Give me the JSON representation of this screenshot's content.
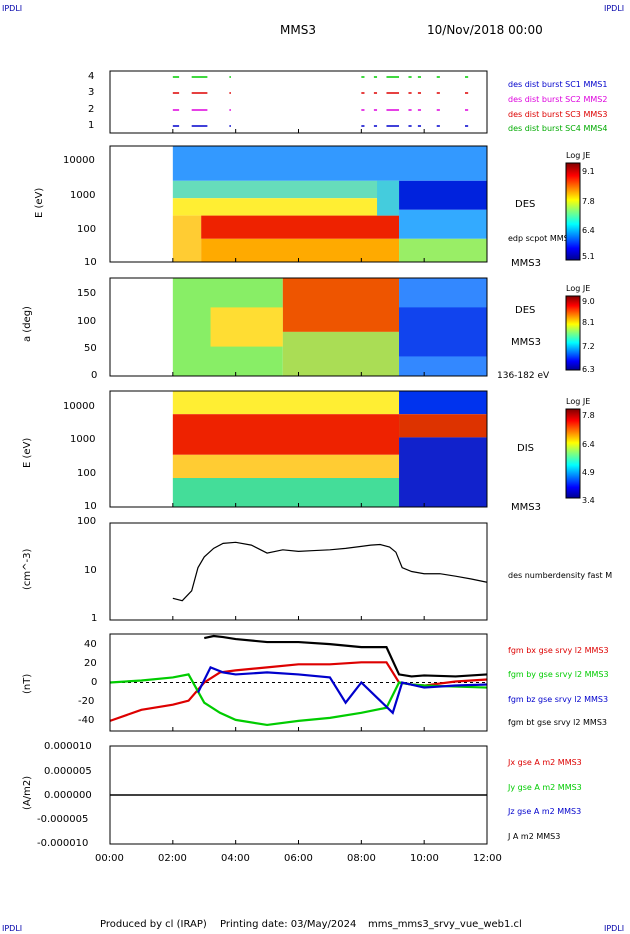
{
  "header": {
    "corner_left_top": "IPDLI",
    "corner_right_top": "IPDLI",
    "corner_left_bottom": "IPDLI",
    "corner_right_bottom": "IPDLI",
    "spacecraft": "MMS3",
    "date": "10/Nov/2018 00:00"
  },
  "footer": {
    "produced": "Produced by cl (IRAP)",
    "printing": "Printing date: 03/May/2024",
    "script": "mms_mms3_srvy_vue_web1.cl"
  },
  "time_axis": {
    "ticks": [
      "00:00",
      "02:00",
      "04:00",
      "06:00",
      "08:00",
      "10:00",
      "12:00"
    ]
  },
  "colors": {
    "blue": "#0000cc",
    "magenta": "#dd00dd",
    "red": "#dd0000",
    "green": "#00cc00",
    "black": "#000000"
  },
  "chart_data": [
    {
      "type": "scatter",
      "panel": "burst availability",
      "y_ticks": [
        "4",
        "3",
        "2",
        "1"
      ],
      "legend": [
        {
          "label": "des dist burst SC1 MMS1",
          "color": "#0000cc"
        },
        {
          "label": "des dist burst SC2 MMS2",
          "color": "#dd00dd"
        },
        {
          "label": "des dist burst SC3 MMS3",
          "color": "#dd0000"
        },
        {
          "label": "des dist burst SC4 MMS4",
          "color": "#00cc00"
        }
      ],
      "segments_hours": [
        [
          2.0,
          2.2
        ],
        [
          2.6,
          3.1
        ],
        [
          3.8,
          3.85
        ],
        [
          8.0,
          8.1
        ],
        [
          8.4,
          8.5
        ],
        [
          8.8,
          9.2
        ],
        [
          9.5,
          9.6
        ],
        [
          9.8,
          9.9
        ],
        [
          10.4,
          10.5
        ],
        [
          11.3,
          11.4
        ]
      ]
    },
    {
      "type": "heatmap",
      "panel": "electron energy spectrogram",
      "ylabel": "E (eV)",
      "y_scale": "log",
      "y_ticks": [
        "10000",
        "1000",
        "100",
        "10"
      ],
      "label_right": "DES",
      "label_right2": "edp scpot MMS3",
      "label_bottom": "MMS3",
      "colorbar": {
        "title": "Log JE",
        "ticks": [
          "9.1",
          "7.8",
          "6.4",
          "5.1"
        ]
      }
    },
    {
      "type": "heatmap",
      "panel": "electron pitch angle",
      "ylabel": "a (deg)",
      "y_ticks": [
        "150",
        "100",
        "50",
        "0"
      ],
      "label_right": "DES",
      "label_bottom": "MMS3",
      "energy_range": "136-182 eV",
      "colorbar": {
        "title": "Log JE",
        "ticks": [
          "9.0",
          "8.1",
          "7.2",
          "6.3"
        ]
      }
    },
    {
      "type": "heatmap",
      "panel": "ion energy spectrogram",
      "ylabel": "E (eV)",
      "y_scale": "log",
      "y_ticks": [
        "10000",
        "1000",
        "100",
        "10"
      ],
      "label_right": "DIS",
      "label_bottom": "MMS3",
      "colorbar": {
        "title": "Log JE",
        "ticks": [
          "7.8",
          "6.4",
          "4.9",
          "3.4"
        ]
      }
    },
    {
      "type": "line",
      "panel": "density",
      "ylabel": "(cm^-3)",
      "y_scale": "log",
      "y_ticks": [
        "100",
        "10",
        "1"
      ],
      "series": [
        {
          "name": "des numberdensity fast M",
          "color": "#000000",
          "x": [
            2.0,
            2.3,
            2.6,
            2.8,
            3.0,
            3.3,
            3.6,
            4.0,
            4.5,
            5.0,
            5.5,
            6.0,
            6.5,
            7.0,
            7.5,
            8.0,
            8.3,
            8.6,
            8.9,
            9.1,
            9.3,
            9.6,
            10.0,
            10.5,
            11.0,
            11.5,
            12.0
          ],
          "y": [
            2.8,
            2.5,
            4,
            12,
            20,
            30,
            38,
            40,
            35,
            24,
            28,
            26,
            27,
            28,
            30,
            33,
            35,
            36,
            32,
            25,
            12,
            10,
            9,
            9,
            8,
            7,
            6
          ]
        }
      ]
    },
    {
      "type": "line",
      "panel": "magnetic field",
      "ylabel": "(nT)",
      "y_ticks": [
        "40",
        "20",
        "0",
        "-20",
        "-40"
      ],
      "ylim": [
        -48,
        48
      ],
      "series": [
        {
          "name": "fgm bx gse srvy l2 MMS3",
          "color": "#dd0000",
          "x": [
            0,
            1,
            2,
            2.5,
            3,
            3.5,
            4,
            5,
            6,
            7,
            8,
            8.8,
            9.2,
            9.6,
            10,
            11,
            12
          ],
          "y": [
            -38,
            -27,
            -22,
            -18,
            0,
            10,
            12,
            15,
            18,
            18,
            20,
            20,
            0,
            -2,
            -3,
            1,
            3
          ]
        },
        {
          "name": "fgm by gse srvy l2 MMS3",
          "color": "#00cc00",
          "x": [
            0,
            1,
            2,
            2.5,
            3,
            3.5,
            4,
            5,
            6,
            7,
            8,
            8.8,
            9.2,
            9.6,
            10,
            11,
            12
          ],
          "y": [
            0,
            2,
            5,
            8,
            -20,
            -30,
            -37,
            -42,
            -38,
            -35,
            -30,
            -25,
            0,
            -2,
            -3,
            -4,
            -5
          ]
        },
        {
          "name": "fgm bz gse srvy l2 MMS3",
          "color": "#0000cc",
          "x": [
            2.8,
            3.2,
            3.6,
            4,
            5,
            6,
            7,
            7.5,
            8,
            8.5,
            9,
            9.3,
            10,
            11,
            12
          ],
          "y": [
            -10,
            15,
            10,
            8,
            10,
            8,
            5,
            -20,
            0,
            -15,
            -30,
            0,
            -5,
            -3,
            -2
          ]
        },
        {
          "name": "fgm bt gse srvy l2 MMS3",
          "color": "#000000",
          "x": [
            3,
            3.3,
            3.6,
            4,
            5,
            6,
            7,
            8,
            8.8,
            9.2,
            9.6,
            10,
            11,
            12
          ],
          "y": [
            44,
            46,
            45,
            43,
            40,
            40,
            38,
            35,
            35,
            8,
            6,
            7,
            6,
            8
          ]
        }
      ]
    },
    {
      "type": "line",
      "panel": "current density",
      "ylabel": "(A/m2)",
      "y_ticks": [
        "0.000010",
        "0.000005",
        "0.000000",
        "-0.000005",
        "-0.000010"
      ],
      "ylim": [
        -1e-05,
        1e-05
      ],
      "series": [
        {
          "name": "Jx gse A m2 MMS3",
          "color": "#dd0000"
        },
        {
          "name": "Jy gse A m2 MMS3",
          "color": "#00cc00"
        },
        {
          "name": "Jz gse A m2 MMS3",
          "color": "#0000cc"
        },
        {
          "name": "J A m2 MMS3",
          "color": "#000000"
        }
      ]
    }
  ]
}
